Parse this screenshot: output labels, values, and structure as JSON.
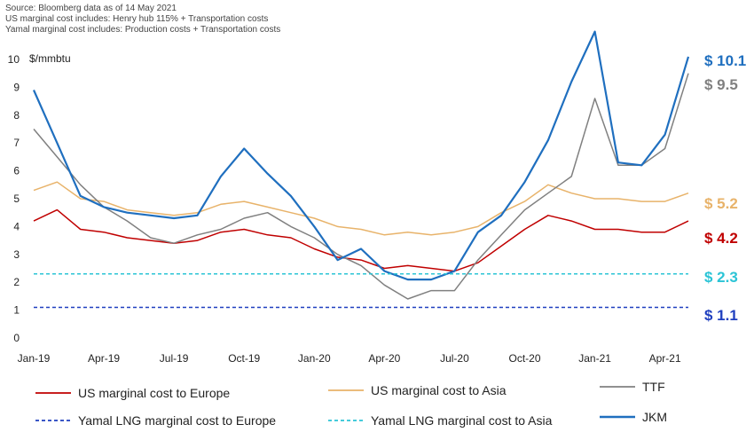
{
  "source_notes": [
    "Source: Bloomberg data as of 14 May 2021",
    "US marginal cost includes: Henry hub 115% + Transportation costs",
    "Yamal marginal cost includes: Production costs + Transportation costs"
  ],
  "colors": {
    "us_europe": "#c00000",
    "us_asia": "#e8b36a",
    "ttf": "#808080",
    "jkm": "#1f6fbf",
    "yamal_europe": "#1f3fbf",
    "yamal_asia": "#2bc4d6"
  },
  "chart_data": {
    "type": "line",
    "ylabel": "$/mmbtu",
    "ylim": [
      0,
      10
    ],
    "yticks": [
      "0",
      "1",
      "2",
      "3",
      "4",
      "5",
      "6",
      "7",
      "8",
      "9",
      "10"
    ],
    "xlim": [
      "2019-01",
      "2021-05"
    ],
    "xticks": [
      "Jan-19",
      "Apr-19",
      "Jul-19",
      "Oct-19",
      "Jan-20",
      "Apr-20",
      "Jul-20",
      "Oct-20",
      "Jan-21",
      "Apr-21"
    ],
    "grid": false,
    "legend_position": "bottom",
    "series": [
      {
        "name": "US marginal cost to Europe",
        "key": "us_europe",
        "style": "solid",
        "x": [
          "2019-01",
          "2019-02",
          "2019-03",
          "2019-04",
          "2019-05",
          "2019-06",
          "2019-07",
          "2019-08",
          "2019-09",
          "2019-10",
          "2019-11",
          "2019-12",
          "2020-01",
          "2020-02",
          "2020-03",
          "2020-04",
          "2020-05",
          "2020-06",
          "2020-07",
          "2020-08",
          "2020-09",
          "2020-10",
          "2020-11",
          "2020-12",
          "2021-01",
          "2021-02",
          "2021-03",
          "2021-04",
          "2021-05"
        ],
        "y": [
          4.2,
          4.6,
          3.9,
          3.8,
          3.6,
          3.5,
          3.4,
          3.5,
          3.8,
          3.9,
          3.7,
          3.6,
          3.2,
          2.9,
          2.8,
          2.5,
          2.6,
          2.5,
          2.4,
          2.7,
          3.3,
          3.9,
          4.4,
          4.2,
          3.9,
          3.9,
          3.8,
          3.8,
          4.2
        ],
        "end_label": "$ 4.2"
      },
      {
        "name": "US marginal cost to Asia",
        "key": "us_asia",
        "style": "solid",
        "x": [
          "2019-01",
          "2019-02",
          "2019-03",
          "2019-04",
          "2019-05",
          "2019-06",
          "2019-07",
          "2019-08",
          "2019-09",
          "2019-10",
          "2019-11",
          "2019-12",
          "2020-01",
          "2020-02",
          "2020-03",
          "2020-04",
          "2020-05",
          "2020-06",
          "2020-07",
          "2020-08",
          "2020-09",
          "2020-10",
          "2020-11",
          "2020-12",
          "2021-01",
          "2021-02",
          "2021-03",
          "2021-04",
          "2021-05"
        ],
        "y": [
          5.3,
          5.6,
          5.0,
          4.9,
          4.6,
          4.5,
          4.4,
          4.5,
          4.8,
          4.9,
          4.7,
          4.5,
          4.3,
          4.0,
          3.9,
          3.7,
          3.8,
          3.7,
          3.8,
          4.0,
          4.5,
          4.9,
          5.5,
          5.2,
          5.0,
          5.0,
          4.9,
          4.9,
          5.2
        ],
        "end_label": "$ 5.2"
      },
      {
        "name": "TTF",
        "key": "ttf",
        "style": "solid",
        "x": [
          "2019-01",
          "2019-02",
          "2019-03",
          "2019-04",
          "2019-05",
          "2019-06",
          "2019-07",
          "2019-08",
          "2019-09",
          "2019-10",
          "2019-11",
          "2019-12",
          "2020-01",
          "2020-02",
          "2020-03",
          "2020-04",
          "2020-05",
          "2020-06",
          "2020-07",
          "2020-08",
          "2020-09",
          "2020-10",
          "2020-11",
          "2020-12",
          "2021-01",
          "2021-02",
          "2021-03",
          "2021-04",
          "2021-05"
        ],
        "y": [
          7.5,
          6.5,
          5.5,
          4.7,
          4.2,
          3.6,
          3.4,
          3.7,
          3.9,
          4.3,
          4.5,
          4.0,
          3.6,
          3.0,
          2.6,
          1.9,
          1.4,
          1.7,
          1.7,
          2.8,
          3.7,
          4.6,
          5.2,
          5.8,
          8.6,
          6.2,
          6.2,
          6.8,
          9.5
        ],
        "end_label": "$ 9.5"
      },
      {
        "name": "JKM",
        "key": "jkm",
        "style": "solid",
        "x": [
          "2019-01",
          "2019-02",
          "2019-03",
          "2019-04",
          "2019-05",
          "2019-06",
          "2019-07",
          "2019-08",
          "2019-09",
          "2019-10",
          "2019-11",
          "2019-12",
          "2020-01",
          "2020-02",
          "2020-03",
          "2020-04",
          "2020-05",
          "2020-06",
          "2020-07",
          "2020-08",
          "2020-09",
          "2020-10",
          "2020-11",
          "2020-12",
          "2021-01",
          "2021-02",
          "2021-03",
          "2021-04",
          "2021-05"
        ],
        "y": [
          8.9,
          7.0,
          5.1,
          4.7,
          4.5,
          4.4,
          4.3,
          4.4,
          5.8,
          6.8,
          5.9,
          5.1,
          4.0,
          2.8,
          3.2,
          2.4,
          2.1,
          2.1,
          2.4,
          3.8,
          4.4,
          5.6,
          7.1,
          9.2,
          11.0,
          6.3,
          6.2,
          7.3,
          10.1
        ],
        "end_label": "$ 10.1"
      },
      {
        "name": "Yamal LNG marginal cost to Europe",
        "key": "yamal_europe",
        "style": "dashed",
        "x": [
          "2019-01",
          "2021-05"
        ],
        "y": [
          1.1,
          1.1
        ],
        "end_label": "$ 1.1"
      },
      {
        "name": "Yamal LNG marginal cost to Asia",
        "key": "yamal_asia",
        "style": "dashed",
        "x": [
          "2019-01",
          "2021-05"
        ],
        "y": [
          2.3,
          2.3
        ],
        "end_label": "$ 2.3"
      }
    ]
  }
}
